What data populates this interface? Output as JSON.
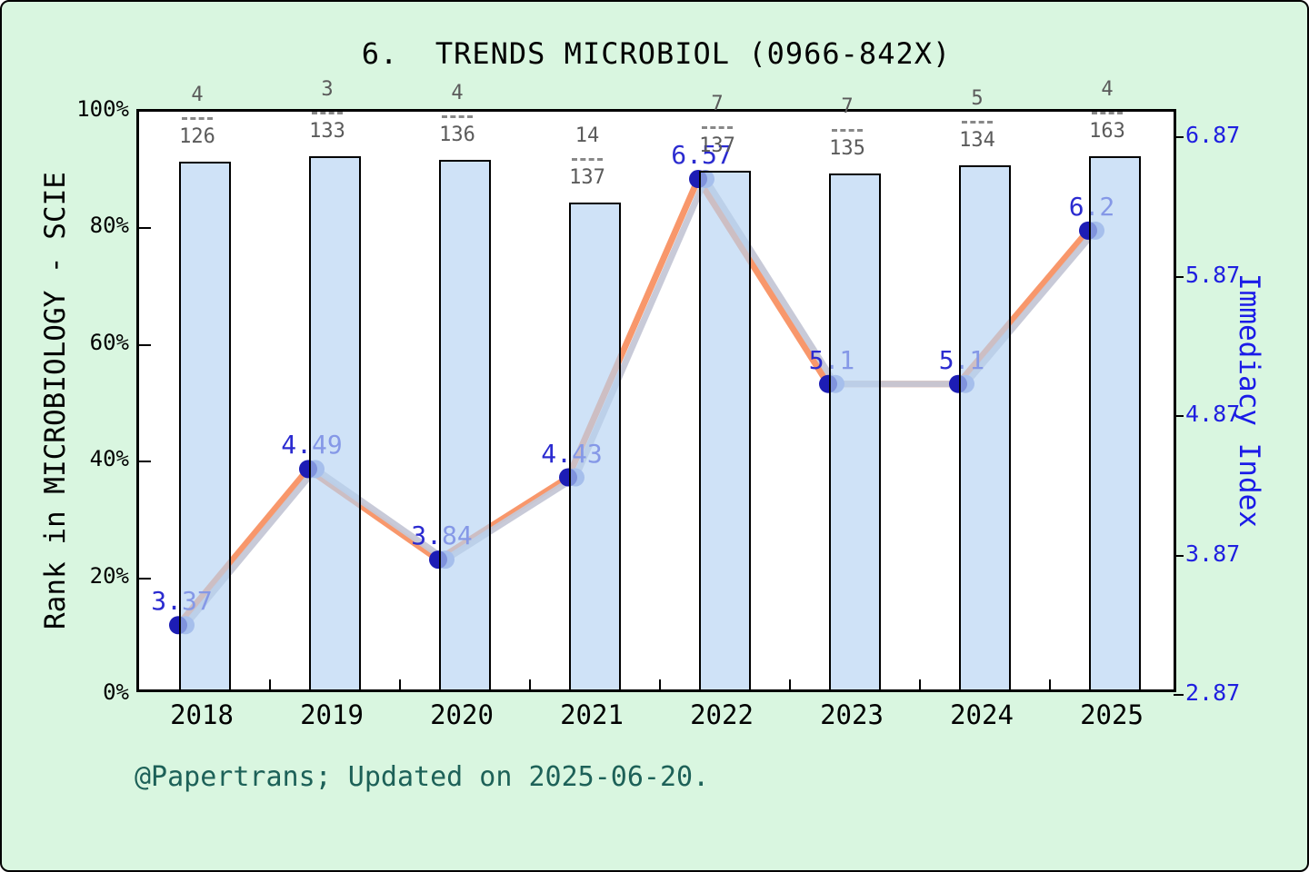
{
  "title": "6.  TRENDS MICROBIOL (0966-842X)",
  "footer": "@Papertrans; Updated on 2025-06-20.",
  "left_axis": {
    "label": "Rank in MICROBIOLOGY - SCIE",
    "tick_labels": [
      "100%",
      "80%",
      "60%",
      "40%",
      "20%",
      "0%"
    ],
    "range": [
      0,
      100
    ]
  },
  "right_axis": {
    "label": "Immediacy Index",
    "tick_labels": [
      "6.87",
      "5.87",
      "4.87",
      "3.87",
      "2.87"
    ],
    "tick_values": [
      6.87,
      5.87,
      4.87,
      3.87,
      2.87
    ],
    "bottom_value": 2.87,
    "units_per_axis_height": 4.1824
  },
  "chart_data": {
    "type": "combo-bar-line",
    "categories": [
      "2018",
      "2019",
      "2020",
      "2021",
      "2022",
      "2023",
      "2024",
      "2025"
    ],
    "series": [
      {
        "name": "Rank in MICROBIOLOGY - SCIE",
        "type": "bar",
        "axis": "left",
        "rank": [
          4,
          3,
          4,
          14,
          7,
          7,
          5,
          4
        ],
        "total": [
          126,
          133,
          136,
          137,
          137,
          135,
          134,
          163
        ],
        "fraction_labels": [
          "4/126",
          "3/133",
          "4/136",
          "14/137",
          "7/137",
          "7/135",
          "5/134",
          "4/163"
        ],
        "bar_height_pct_of_axis": [
          90.5,
          91.4,
          90.8,
          83.5,
          88.9,
          88.5,
          89.9,
          91.4
        ]
      },
      {
        "name": "Immediacy Index",
        "type": "line",
        "axis": "right",
        "values": [
          3.37,
          4.49,
          3.84,
          4.43,
          6.57,
          5.1,
          5.1,
          6.2
        ],
        "point_labels": [
          "3.37",
          "4.49",
          "3.84",
          "4.43",
          "6.57",
          "5.1",
          "5.1",
          "6.2"
        ]
      }
    ],
    "legend": null,
    "grid": false
  },
  "colors": {
    "page_background": "#d9f6e0",
    "plot_background": "#ffffff",
    "bar_fill": "rgba(182,210,242,0.65)",
    "bar_border": "#000000",
    "line_orange": "#f8976b",
    "line_shadow_gray": "rgba(197,199,214,0.95)",
    "marker_navy": "#1d1db5",
    "marker_ghost": "#8b9ade",
    "value_label_blue": "#2b2bd0",
    "right_axis_blue": "#1f1fe0",
    "fraction_gray": "#5a5a5a",
    "footer_teal": "#1d6158"
  }
}
